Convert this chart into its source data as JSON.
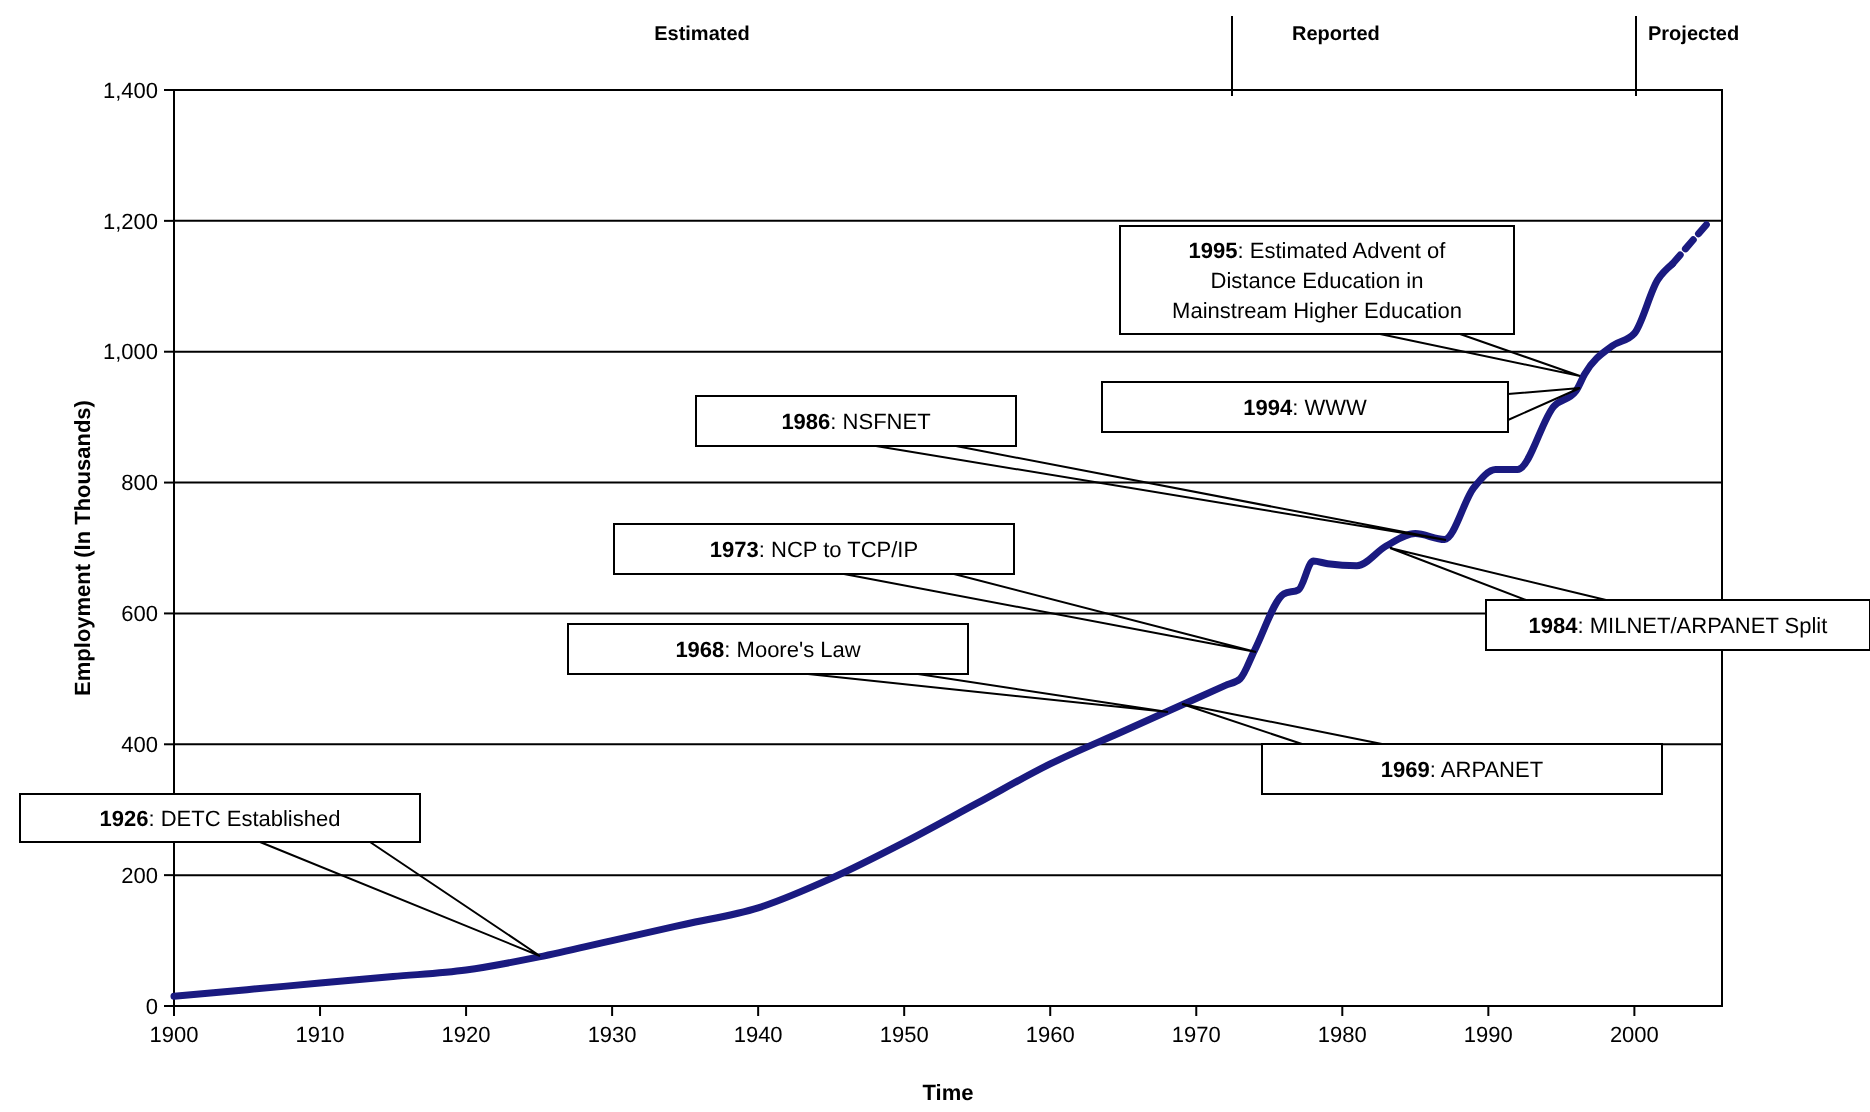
{
  "chart_data": {
    "type": "line",
    "xlabel": "Time",
    "ylabel": "Employment (In Thousands)",
    "xlim": [
      1900,
      2006
    ],
    "xticks": [
      1900,
      1910,
      1920,
      1930,
      1940,
      1950,
      1960,
      1970,
      1980,
      1990,
      2000
    ],
    "ylim": [
      0,
      1400
    ],
    "yticks": [
      0,
      {
        "value": 200,
        "label": "200"
      },
      {
        "value": 400,
        "label": "400"
      },
      {
        "value": 600,
        "label": "600"
      },
      {
        "value": 800,
        "label": "800"
      },
      {
        "value": 1000,
        "label": "1,000"
      },
      {
        "value": 1200,
        "label": "1,200"
      },
      {
        "value": 1400,
        "label": "1,400"
      }
    ],
    "grid": "y",
    "marker": "none",
    "series": [
      {
        "color": "#1a1a80",
        "line_style": "solid",
        "x": [
          1900,
          1905,
          1910,
          1915,
          1920,
          1925,
          1930,
          1935,
          1940,
          1945,
          1950,
          1955,
          1960,
          1965,
          1970,
          1972,
          1973,
          1974,
          1976,
          1977,
          1978,
          1979,
          1981,
          1983,
          1985,
          1987,
          1989,
          1990.5,
          1992,
          1994.5,
          1996,
          1996.6,
          1998.5,
          2000,
          2001.6,
          2002.6
        ],
        "values": [
          15,
          25,
          35,
          45,
          55,
          75,
          100,
          125,
          150,
          195,
          250,
          310,
          370,
          420,
          470,
          490,
          500,
          544,
          630,
          636,
          680,
          676,
          673,
          703,
          722,
          713,
          792,
          820,
          820,
          917,
          940,
          966,
          1009,
          1028,
          1110,
          1134
        ]
      },
      {
        "color": "#1a1a80",
        "line_style": "dashed",
        "x": [
          2002.6,
          2005
        ],
        "values": [
          1134,
          1196
        ]
      }
    ],
    "annotations": [
      "Estimated",
      "Reported",
      "Projected",
      "1926: DETC Established",
      "1968: Moore's Law",
      "1969: ARPANET",
      "1973: NCP to TCP/IP",
      "1986: NSFNET",
      "1984: MILNET/ARPANET Split",
      "1994: WWW",
      "1995: Estimated Advent of Distance Education in Mainstream Higher Education"
    ]
  }
}
